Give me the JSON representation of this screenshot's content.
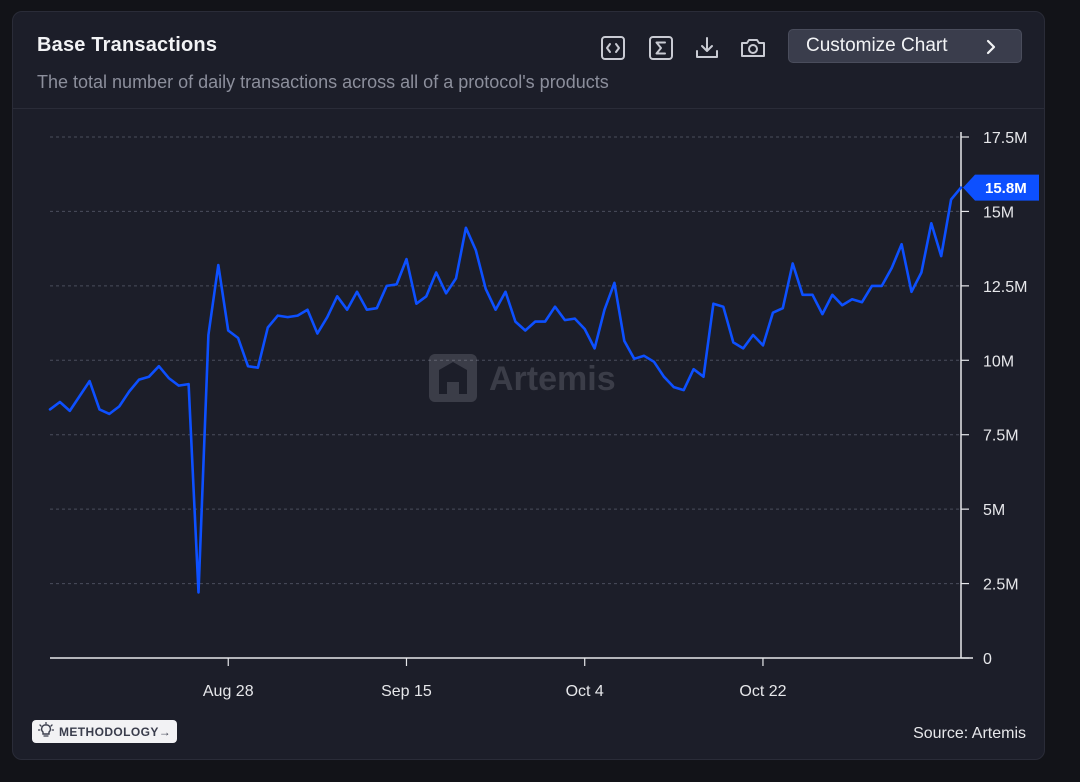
{
  "header": {
    "title": "Base Transactions",
    "subtitle": "The total number of daily transactions across all of a protocol's products",
    "customize_label": "Customize Chart"
  },
  "toolbar": {
    "embed": "embed-icon",
    "sum": "sigma-icon",
    "download": "download-icon",
    "screenshot": "camera-icon"
  },
  "footer": {
    "methodology_label": "METHODOLOGY→",
    "source_label": "Source: Artemis"
  },
  "watermark": "Artemis",
  "colors": {
    "line": "#0d50ff",
    "badge": "#0d50ff",
    "background": "#1c1e29",
    "grid": "#4a4d5c"
  },
  "chart_data": {
    "type": "line",
    "title": "Base Transactions",
    "xlabel": "",
    "ylabel": "",
    "ylim": [
      0,
      17500000
    ],
    "yticks": [
      0,
      2500000,
      5000000,
      7500000,
      10000000,
      12500000,
      15000000,
      17500000
    ],
    "ytick_labels": [
      "0",
      "2.5M",
      "5M",
      "7.5M",
      "10M",
      "12.5M",
      "15M",
      "17.5M"
    ],
    "xtick_labels": [
      "Aug 28",
      "Sep 15",
      "Oct 4",
      "Oct 22"
    ],
    "xtick_indices": [
      18,
      36,
      54,
      72
    ],
    "last_value_label": "15.8M",
    "legend": "none",
    "grid": true,
    "series": [
      {
        "name": "Base Transactions",
        "values": [
          8.35,
          8.6,
          8.3,
          8.8,
          9.3,
          8.35,
          8.2,
          8.45,
          8.95,
          9.35,
          9.45,
          9.8,
          9.4,
          9.15,
          9.2,
          2.2,
          10.85,
          13.2,
          11.0,
          10.75,
          9.8,
          9.75,
          11.1,
          11.5,
          11.45,
          11.5,
          11.7,
          10.9,
          11.45,
          12.15,
          11.7,
          12.3,
          11.7,
          11.75,
          12.5,
          12.55,
          13.4,
          11.9,
          12.15,
          12.95,
          12.25,
          12.75,
          14.45,
          13.7,
          12.4,
          11.7,
          12.3,
          11.3,
          11.0,
          11.3,
          11.3,
          11.8,
          11.35,
          11.4,
          11.05,
          10.4,
          11.7,
          12.6,
          10.65,
          10.05,
          10.15,
          9.95,
          9.45,
          9.1,
          9.0,
          9.7,
          9.45,
          11.9,
          11.8,
          10.6,
          10.4,
          10.85,
          10.5,
          11.6,
          11.75,
          13.25,
          12.2,
          12.2,
          11.55,
          12.2,
          11.85,
          12.05,
          11.95,
          12.5,
          12.5,
          13.1,
          13.9,
          12.3,
          12.95,
          14.6,
          13.5,
          15.4,
          15.8
        ]
      }
    ]
  }
}
